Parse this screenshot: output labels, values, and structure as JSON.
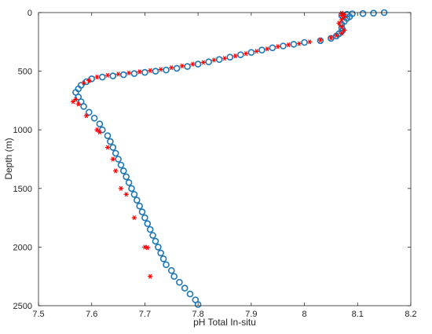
{
  "chart_data": {
    "type": "scatter",
    "title": "",
    "xlabel": "pH Total In-situ",
    "ylabel": "Depth (m)",
    "xlim": [
      7.5,
      8.2
    ],
    "ylim": [
      0,
      2500
    ],
    "y_reversed": true,
    "grid": false,
    "legend": "none",
    "xticks": [
      7.5,
      7.6,
      7.7,
      7.8,
      7.9,
      8.0,
      8.1,
      8.2
    ],
    "xtick_labels": [
      "7.5",
      "7.6",
      "7.7",
      "7.8",
      "7.9",
      "8",
      "8.1",
      "8.2"
    ],
    "yticks": [
      0,
      500,
      1000,
      1500,
      2000,
      2500
    ],
    "ytick_labels": [
      "0",
      "500",
      "1000",
      "1500",
      "2000",
      "2500"
    ],
    "series": [
      {
        "marker": "circle",
        "color": "#1f77b4",
        "points": [
          [
            8.15,
            0
          ],
          [
            8.13,
            5
          ],
          [
            8.11,
            8
          ],
          [
            8.09,
            10
          ],
          [
            8.08,
            15
          ],
          [
            8.07,
            25
          ],
          [
            8.085,
            35
          ],
          [
            8.08,
            50
          ],
          [
            8.075,
            75
          ],
          [
            8.07,
            100
          ],
          [
            8.07,
            130
          ],
          [
            8.07,
            160
          ],
          [
            8.065,
            180
          ],
          [
            8.06,
            200
          ],
          [
            8.05,
            220
          ],
          [
            8.03,
            240
          ],
          [
            8.0,
            255
          ],
          [
            7.98,
            270
          ],
          [
            7.96,
            285
          ],
          [
            7.94,
            300
          ],
          [
            7.92,
            320
          ],
          [
            7.9,
            340
          ],
          [
            7.88,
            360
          ],
          [
            7.86,
            380
          ],
          [
            7.84,
            400
          ],
          [
            7.82,
            420
          ],
          [
            7.8,
            440
          ],
          [
            7.78,
            460
          ],
          [
            7.76,
            475
          ],
          [
            7.74,
            490
          ],
          [
            7.72,
            500
          ],
          [
            7.7,
            510
          ],
          [
            7.68,
            520
          ],
          [
            7.66,
            530
          ],
          [
            7.64,
            540
          ],
          [
            7.62,
            550
          ],
          [
            7.6,
            565
          ],
          [
            7.59,
            590
          ],
          [
            7.58,
            620
          ],
          [
            7.575,
            650
          ],
          [
            7.57,
            680
          ],
          [
            7.575,
            720
          ],
          [
            7.58,
            760
          ],
          [
            7.585,
            800
          ],
          [
            7.595,
            850
          ],
          [
            7.605,
            900
          ],
          [
            7.615,
            950
          ],
          [
            7.62,
            1000
          ],
          [
            7.63,
            1050
          ],
          [
            7.635,
            1100
          ],
          [
            7.64,
            1150
          ],
          [
            7.645,
            1200
          ],
          [
            7.65,
            1250
          ],
          [
            7.655,
            1300
          ],
          [
            7.66,
            1350
          ],
          [
            7.665,
            1400
          ],
          [
            7.67,
            1450
          ],
          [
            7.675,
            1500
          ],
          [
            7.68,
            1550
          ],
          [
            7.685,
            1600
          ],
          [
            7.69,
            1650
          ],
          [
            7.695,
            1700
          ],
          [
            7.7,
            1750
          ],
          [
            7.705,
            1800
          ],
          [
            7.71,
            1850
          ],
          [
            7.715,
            1900
          ],
          [
            7.72,
            1950
          ],
          [
            7.725,
            2000
          ],
          [
            7.73,
            2050
          ],
          [
            7.735,
            2100
          ],
          [
            7.74,
            2150
          ],
          [
            7.75,
            2200
          ],
          [
            7.755,
            2250
          ],
          [
            7.765,
            2300
          ],
          [
            7.775,
            2350
          ],
          [
            7.785,
            2400
          ],
          [
            7.795,
            2450
          ],
          [
            7.8,
            2490
          ]
        ]
      },
      {
        "marker": "asterisk",
        "color": "#ff0000",
        "points": [
          [
            8.07,
            5
          ],
          [
            8.075,
            15
          ],
          [
            8.07,
            25
          ],
          [
            8.075,
            40
          ],
          [
            8.07,
            60
          ],
          [
            8.065,
            90
          ],
          [
            8.07,
            120
          ],
          [
            8.075,
            150
          ],
          [
            8.07,
            175
          ],
          [
            8.06,
            195
          ],
          [
            8.05,
            215
          ],
          [
            8.03,
            235
          ],
          [
            8.01,
            250
          ],
          [
            7.99,
            265
          ],
          [
            7.97,
            275
          ],
          [
            7.95,
            290
          ],
          [
            7.93,
            310
          ],
          [
            7.91,
            330
          ],
          [
            7.89,
            350
          ],
          [
            7.87,
            370
          ],
          [
            7.85,
            390
          ],
          [
            7.83,
            405
          ],
          [
            7.81,
            425
          ],
          [
            7.79,
            440
          ],
          [
            7.77,
            455
          ],
          [
            7.75,
            470
          ],
          [
            7.73,
            485
          ],
          [
            7.71,
            495
          ],
          [
            7.69,
            505
          ],
          [
            7.67,
            515
          ],
          [
            7.65,
            525
          ],
          [
            7.63,
            535
          ],
          [
            7.61,
            550
          ],
          [
            7.595,
            580
          ],
          [
            7.585,
            600
          ],
          [
            7.57,
            740
          ],
          [
            7.565,
            760
          ],
          [
            7.575,
            780
          ],
          [
            7.59,
            880
          ],
          [
            7.61,
            1000
          ],
          [
            7.615,
            1020
          ],
          [
            7.63,
            1150
          ],
          [
            7.64,
            1250
          ],
          [
            7.645,
            1350
          ],
          [
            7.655,
            1500
          ],
          [
            7.665,
            1550
          ],
          [
            7.68,
            1750
          ],
          [
            7.7,
            2000
          ],
          [
            7.705,
            2005
          ],
          [
            7.71,
            2250
          ]
        ]
      }
    ]
  }
}
